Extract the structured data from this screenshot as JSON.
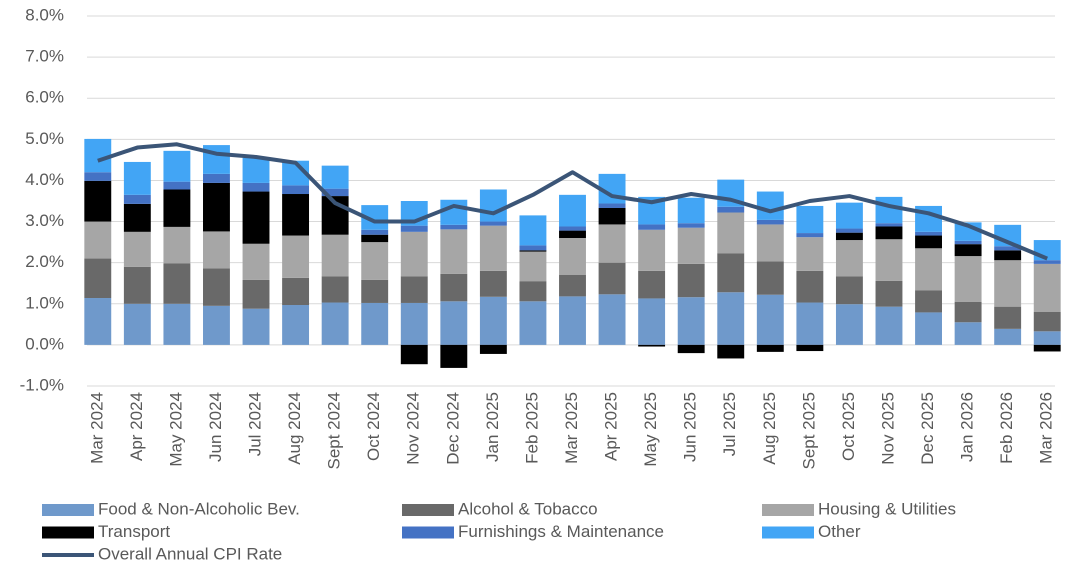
{
  "chart_data": {
    "type": "stacked_bar_line",
    "categories": [
      "Mar 2024",
      "Apr 2024",
      "May 2024",
      "Jun 2024",
      "Jul 2024",
      "Aug 2024",
      "Sept 2024",
      "Oct 2024",
      "Nov 2024",
      "Dec 2024",
      "Jan 2025",
      "Feb 2025",
      "Mar 2025",
      "Apr 2025",
      "May 2025",
      "Jun 2025",
      "Jul 2025",
      "Aug 2025",
      "Sept 2025",
      "Oct 2025",
      "Nov 2025",
      "Dec 2025",
      "Jan 2026",
      "Feb 2026",
      "Mar 2026"
    ],
    "series": [
      {
        "name": "Food & Non-Alcoholic Bev.",
        "color": "#6f99cb",
        "values": [
          1.14,
          1.0,
          1.0,
          0.95,
          0.88,
          0.97,
          1.03,
          1.02,
          1.02,
          1.06,
          1.17,
          1.06,
          1.18,
          1.23,
          1.13,
          1.16,
          1.28,
          1.22,
          1.03,
          0.99,
          0.93,
          0.79,
          0.55,
          0.39,
          0.33
        ]
      },
      {
        "name": "Alcohol & Tobacco",
        "color": "#696969",
        "values": [
          0.96,
          0.9,
          0.98,
          0.91,
          0.7,
          0.66,
          0.64,
          0.56,
          0.65,
          0.67,
          0.63,
          0.49,
          0.52,
          0.77,
          0.67,
          0.81,
          0.95,
          0.81,
          0.77,
          0.68,
          0.63,
          0.54,
          0.5,
          0.54,
          0.47
        ]
      },
      {
        "name": "Housing & Utilities",
        "color": "#a6a6a6",
        "values": [
          0.9,
          0.85,
          0.89,
          0.9,
          0.88,
          1.03,
          1.01,
          0.92,
          1.08,
          1.08,
          1.1,
          0.72,
          0.9,
          0.93,
          1.0,
          0.88,
          0.99,
          0.9,
          0.82,
          0.88,
          1.01,
          1.02,
          1.11,
          1.13,
          1.17
        ]
      },
      {
        "name": "Transport",
        "color": "#000000",
        "values": [
          0.99,
          0.68,
          0.91,
          1.18,
          1.27,
          1.01,
          0.94,
          0.18,
          -0.47,
          -0.56,
          -0.22,
          0.03,
          0.18,
          0.4,
          -0.04,
          -0.2,
          -0.33,
          -0.17,
          -0.15,
          0.18,
          0.31,
          0.31,
          0.29,
          0.24,
          -0.16
        ]
      },
      {
        "name": "Furnishings & Maintenance",
        "color": "#4472c4",
        "values": [
          0.21,
          0.22,
          0.19,
          0.22,
          0.21,
          0.21,
          0.18,
          0.12,
          0.15,
          0.11,
          0.1,
          0.12,
          0.1,
          0.11,
          0.13,
          0.11,
          0.14,
          0.11,
          0.1,
          0.1,
          0.08,
          0.09,
          0.08,
          0.1,
          0.09
        ]
      },
      {
        "name": "Other",
        "color": "#42a5f5",
        "values": [
          0.81,
          0.8,
          0.75,
          0.7,
          0.61,
          0.6,
          0.56,
          0.6,
          0.6,
          0.61,
          0.78,
          0.73,
          0.77,
          0.72,
          0.67,
          0.62,
          0.66,
          0.69,
          0.66,
          0.63,
          0.64,
          0.63,
          0.45,
          0.52,
          0.49
        ]
      },
      {
        "name": "Overall Annual CPI Rate",
        "color": "#3b5577",
        "type": "line",
        "values": [
          4.48,
          4.8,
          4.88,
          4.65,
          4.57,
          4.43,
          3.45,
          3.0,
          3.0,
          3.38,
          3.2,
          3.65,
          4.2,
          3.62,
          3.47,
          3.67,
          3.53,
          3.25,
          3.5,
          3.62,
          3.38,
          3.2,
          2.9,
          2.5,
          2.1
        ]
      }
    ],
    "ylim": [
      -1,
      8
    ],
    "yticks": [
      {
        "value": -1,
        "label": "-1.0%"
      },
      {
        "value": 0,
        "label": "0.0%"
      },
      {
        "value": 1,
        "label": "1.0%"
      },
      {
        "value": 2,
        "label": "2.0%"
      },
      {
        "value": 3,
        "label": "3.0%"
      },
      {
        "value": 4,
        "label": "4.0%"
      },
      {
        "value": 5,
        "label": "5.0%"
      },
      {
        "value": 6,
        "label": "6.0%"
      },
      {
        "value": 7,
        "label": "7.0%"
      },
      {
        "value": 8,
        "label": "8.0%"
      }
    ],
    "grid": true,
    "legend": "bottom"
  }
}
